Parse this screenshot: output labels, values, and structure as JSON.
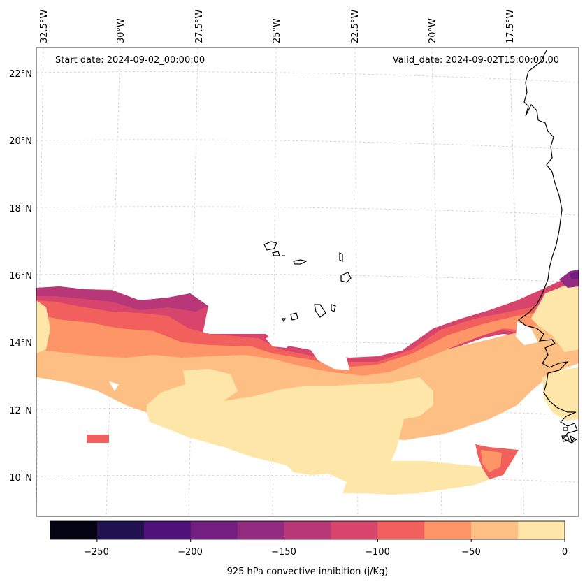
{
  "header": {
    "start_date": "Start date: 2024-09-02_00:00:00",
    "valid_date": "Valid_date: 2024-09-02T15:00:00.00"
  },
  "longitude_labels": [
    "32.5°W",
    "30°W",
    "27.5°W",
    "25°W",
    "22.5°W",
    "20°W",
    "17.5°W"
  ],
  "latitude_labels": [
    "22°N",
    "20°N",
    "18°N",
    "16°N",
    "14°N",
    "12°N",
    "10°N"
  ],
  "colorbar": {
    "label": "925 hPa convective inhibition (j/Kg)",
    "ticks": [
      "−250",
      "−200",
      "−150",
      "−100",
      "−50",
      "0"
    ],
    "levels": [
      -275,
      -250,
      -225,
      -200,
      -175,
      -150,
      -125,
      -100,
      -75,
      -50,
      -25,
      0
    ],
    "colors": [
      "#050413",
      "#221150",
      "#4f127b",
      "#721f81",
      "#932b80",
      "#b73779",
      "#d8456c",
      "#f1605d",
      "#fd9567",
      "#febf84",
      "#fde6a8"
    ]
  },
  "chart_data": {
    "type": "map-contour",
    "variable": "925 hPa convective inhibition",
    "units": "j/Kg",
    "longitude_range": [
      -33,
      -15.5
    ],
    "latitude_range": [
      9,
      22.8
    ],
    "color_levels": [
      -275,
      -250,
      -225,
      -200,
      -175,
      -150,
      -125,
      -100,
      -75,
      -50,
      -25,
      0
    ],
    "regions": [
      {
        "name": "weak-inhibition-band",
        "level": "-25 to 0",
        "lat_range": [
          9.5,
          13.5
        ],
        "lon_range": [
          -28.5,
          -16.5
        ]
      },
      {
        "name": "moderate-inhibition-band",
        "level": "-75 to -25",
        "lat_range": [
          12,
          15
        ],
        "lon_range": [
          -33,
          -15.5
        ]
      },
      {
        "name": "strong-inhibition-north-edge",
        "level": "-175 to -100",
        "lat_range": [
          14,
          15.6
        ],
        "lon_range": [
          -33,
          -28
        ]
      },
      {
        "name": "coastal-max",
        "level": "-225 to -150",
        "lat_range": [
          14.5,
          16.2
        ],
        "lon_range": [
          -16,
          -15.5
        ]
      }
    ]
  }
}
